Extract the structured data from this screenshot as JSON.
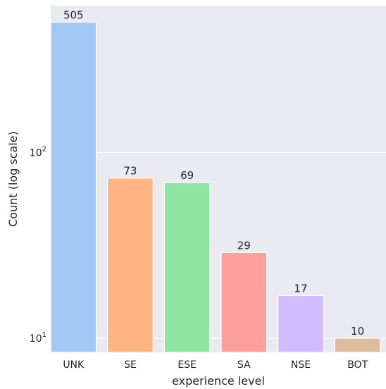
{
  "chart_data": {
    "type": "bar",
    "categories": [
      "UNK",
      "SE",
      "ESE",
      "SA",
      "NSE",
      "BOT"
    ],
    "values": [
      505,
      73,
      69,
      29,
      17,
      10
    ],
    "data_labels": [
      "505",
      "73",
      "69",
      "29",
      "17",
      "10"
    ],
    "xlabel": "experience level",
    "ylabel": "Count (log scale)",
    "yscale": "log",
    "ylim": [
      8.4,
      620
    ],
    "yticks": [
      {
        "value": 10,
        "base": "10",
        "exp": "1"
      },
      {
        "value": 100,
        "base": "10",
        "exp": "2"
      }
    ],
    "grid": true,
    "colors": [
      "#a1c9f4",
      "#ffb482",
      "#8de5a1",
      "#ff9f9b",
      "#d0bbff",
      "#debb9b"
    ],
    "background": "#eaeaf2"
  }
}
